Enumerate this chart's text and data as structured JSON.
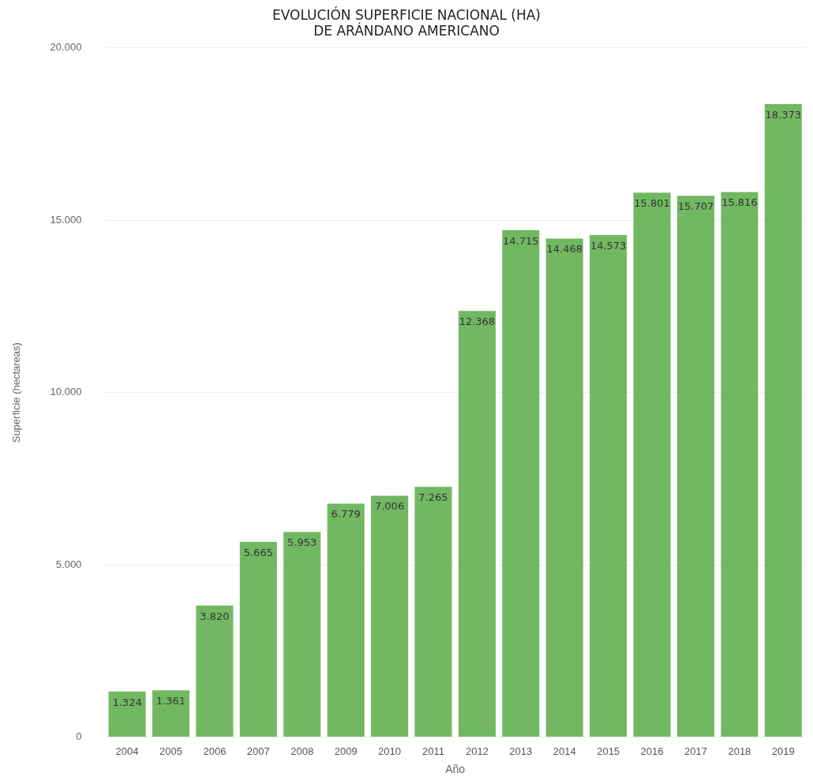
{
  "chart_data": {
    "type": "bar",
    "title": "EVOLUCIÓN SUPERFICIE NACIONAL (HA)\nDE ARÁNDANO AMERICANO",
    "xlabel": "Año",
    "ylabel": "Superficie (hectareas)",
    "categories": [
      "2004",
      "2005",
      "2006",
      "2007",
      "2008",
      "2009",
      "2010",
      "2011",
      "2012",
      "2013",
      "2014",
      "2015",
      "2016",
      "2017",
      "2018",
      "2019"
    ],
    "values": [
      1324,
      1361,
      3820,
      5665,
      5953,
      6779,
      7006,
      7265,
      12368,
      14715,
      14468,
      14573,
      15801,
      15707,
      15816,
      18373
    ],
    "value_labels": [
      "1.324",
      "1.361",
      "3.820",
      "5.665",
      "5.953",
      "6.779",
      "7.006",
      "7.265",
      "12.368",
      "14.715",
      "14.468",
      "14.573",
      "15.801",
      "15.707",
      "15.816",
      "18.373"
    ],
    "color": "#72b862",
    "ylim": [
      0,
      20000
    ],
    "yticks": [
      0,
      {
        "value": 5000,
        "label": "5.000"
      },
      {
        "value": 10000,
        "label": "10.000"
      },
      {
        "value": 15000,
        "label": "15.000"
      },
      {
        "value": 20000,
        "label": "20.000"
      }
    ],
    "grid": "y",
    "legend": false
  }
}
